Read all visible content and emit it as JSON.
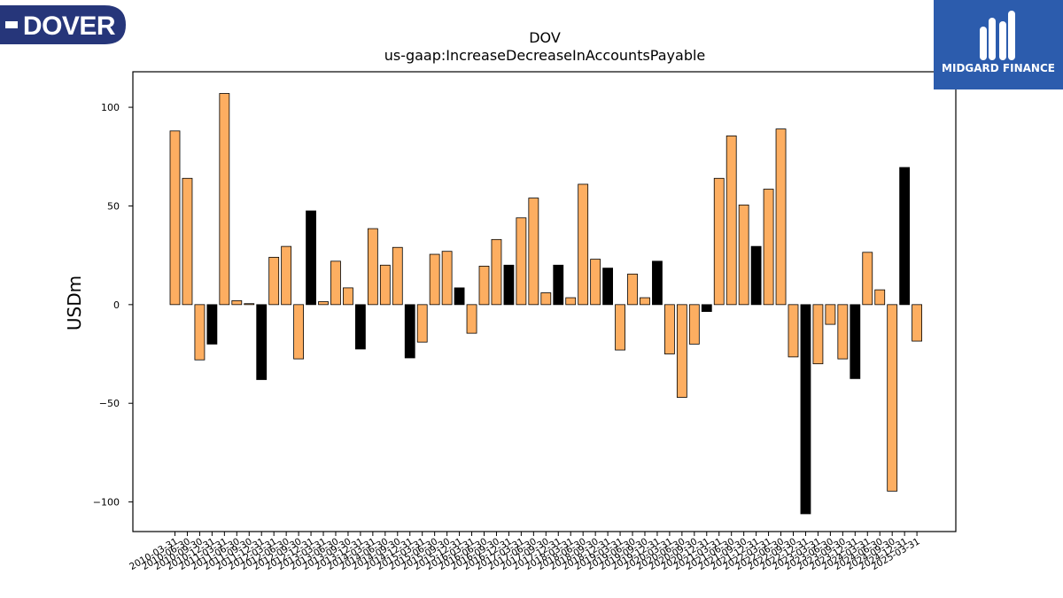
{
  "logos": {
    "left_text": "DOVER",
    "right_text": "MIDGARD FINANCE"
  },
  "colors": {
    "bar_q": "#fdae61",
    "bar_fy": "#000000",
    "logo_left_bg": "#26367a",
    "logo_right_bg": "#2c5cad"
  },
  "chart_data": {
    "type": "bar",
    "title": "DOV",
    "subtitle": "us-gaap:IncreaseDecreaseInAccountsPayable",
    "ylabel": "USDm",
    "xlabel": "",
    "ylim": [
      -115,
      118
    ],
    "yticks": [
      100,
      50,
      0,
      -50,
      -100
    ],
    "ytick_labels": [
      "100",
      "50",
      "0",
      "−50",
      "−100"
    ],
    "categories": [
      "2010-03-31",
      "2010-06-30",
      "2010-09-30",
      "2010-12-31",
      "2011-03-31",
      "2011-06-30",
      "2011-09-30",
      "2011-12-31",
      "2012-03-31",
      "2012-06-30",
      "2012-09-30",
      "2012-12-31",
      "2013-03-31",
      "2013-06-30",
      "2013-09-30",
      "2013-12-31",
      "2014-03-31",
      "2014-06-30",
      "2014-09-30",
      "2014-12-31",
      "2015-03-31",
      "2015-06-30",
      "2015-09-30",
      "2015-12-31",
      "2016-03-31",
      "2016-06-30",
      "2016-09-30",
      "2016-12-31",
      "2017-03-31",
      "2017-06-30",
      "2017-09-30",
      "2017-12-31",
      "2018-03-31",
      "2018-06-30",
      "2018-09-30",
      "2018-12-31",
      "2019-03-31",
      "2019-06-30",
      "2019-09-30",
      "2019-12-31",
      "2020-03-31",
      "2020-06-30",
      "2020-09-30",
      "2020-12-31",
      "2021-03-31",
      "2021-06-30",
      "2021-09-30",
      "2021-12-31",
      "2022-03-31",
      "2022-06-30",
      "2022-09-30",
      "2022-12-31",
      "2023-03-31",
      "2023-06-30",
      "2023-09-30",
      "2023-12-31",
      "2024-03-31",
      "2024-06-30",
      "2024-09-30",
      "2024-12-31",
      "2025-03-31"
    ],
    "values": [
      88,
      64,
      -28,
      -20,
      107,
      2,
      0.5,
      -38,
      24,
      29.5,
      -27.5,
      47.5,
      1.5,
      22,
      8.5,
      -22.5,
      38.5,
      20,
      29,
      -27,
      -19,
      25.5,
      27,
      8.5,
      -14.5,
      19.5,
      33,
      20,
      44,
      54,
      6,
      20,
      3.5,
      61,
      23,
      18.5,
      -23,
      15.5,
      3.5,
      22,
      -25,
      -47,
      -20,
      -3.5,
      64,
      85.5,
      50.5,
      29.5,
      58.5,
      89,
      -26.5,
      -106,
      -30,
      -10,
      -27.5,
      -37.5,
      26.5,
      7.5,
      -94.5,
      69.5,
      -18.5
    ],
    "fy_flags": [
      false,
      false,
      false,
      true,
      false,
      false,
      false,
      true,
      false,
      false,
      false,
      true,
      false,
      false,
      false,
      true,
      false,
      false,
      false,
      true,
      false,
      false,
      false,
      true,
      false,
      false,
      false,
      true,
      false,
      false,
      false,
      true,
      false,
      false,
      false,
      true,
      false,
      false,
      false,
      true,
      false,
      false,
      false,
      true,
      false,
      false,
      false,
      true,
      false,
      false,
      false,
      true,
      false,
      false,
      false,
      true,
      false,
      false,
      false,
      true,
      false
    ],
    "grid": false,
    "legend": "none"
  }
}
